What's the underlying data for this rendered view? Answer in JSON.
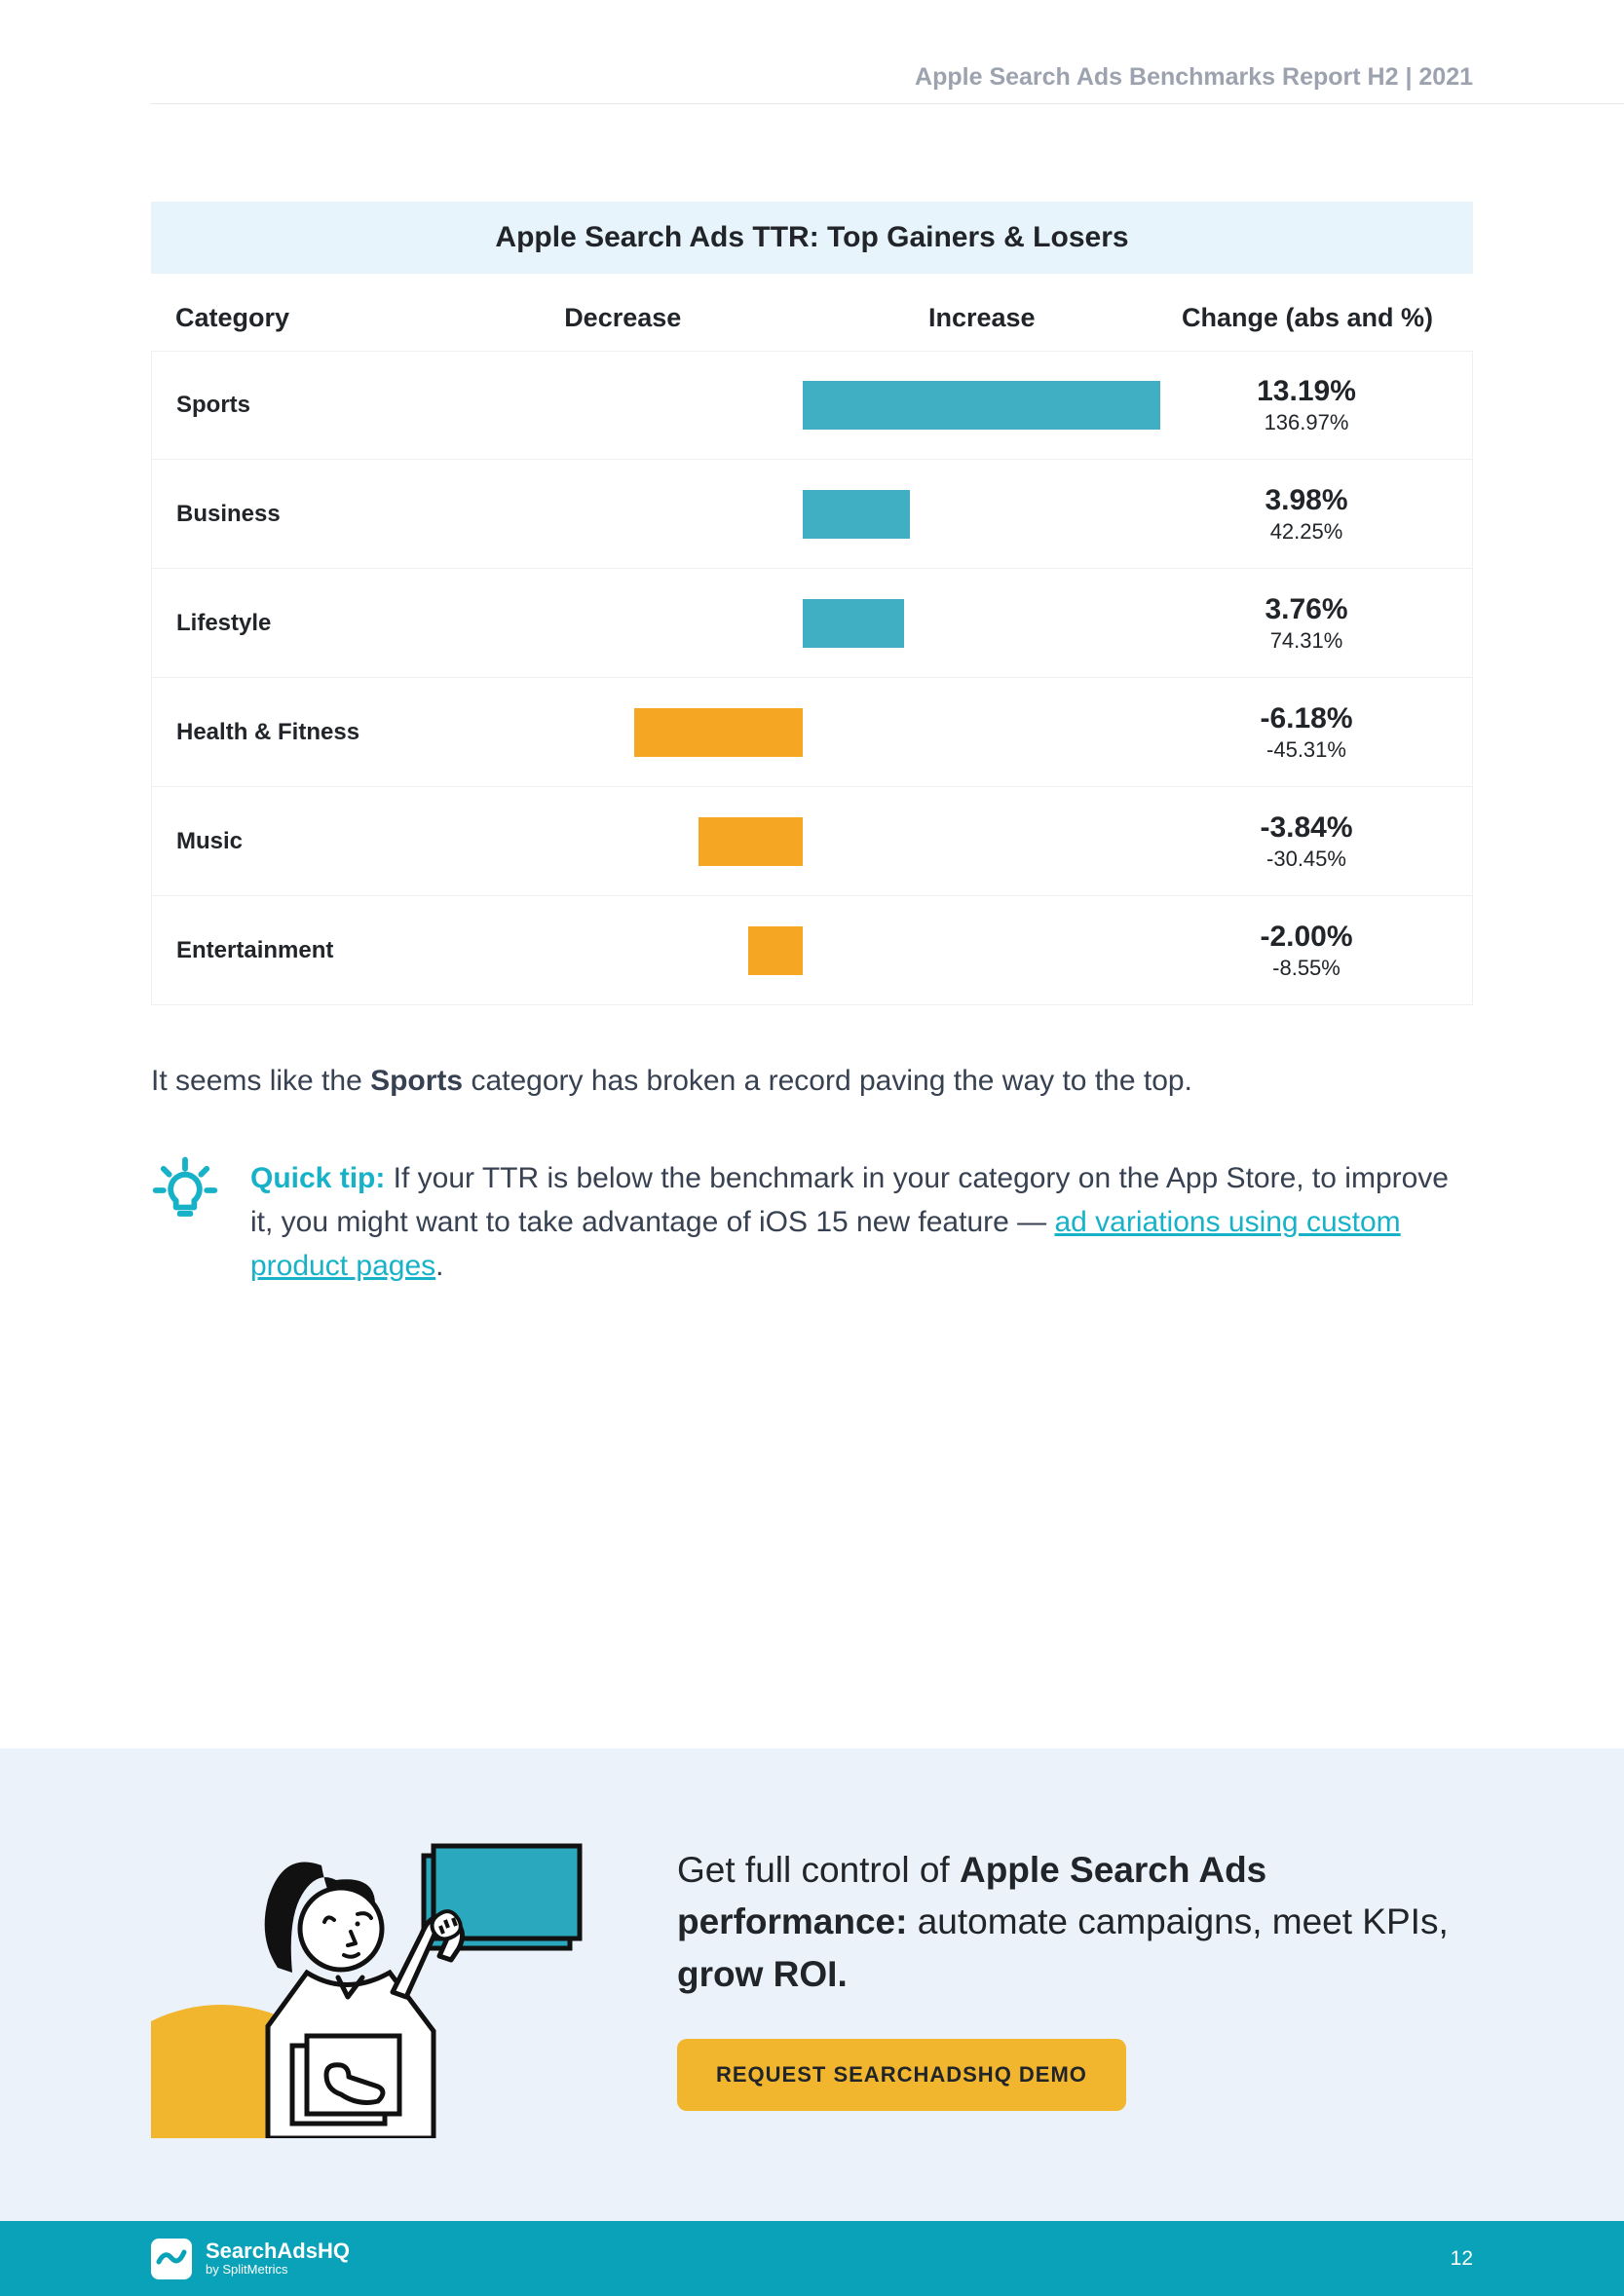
{
  "header": {
    "label": "Apple Search Ads Benchmarks Report H2 | 2021"
  },
  "chart": {
    "title": "Apple Search Ads TTR: Top Gainers & Losers",
    "columns": {
      "category": "Category",
      "decrease": "Decrease",
      "increase": "Increase",
      "change": "Change (abs and %)"
    },
    "bar_colors": {
      "increase": "#40aec3",
      "decrease": "#f5a623"
    },
    "max_abs_value": 13.19,
    "rows": [
      {
        "category": "Sports",
        "abs": "13.19%",
        "pct": "136.97%",
        "value": 13.19
      },
      {
        "category": "Business",
        "abs": "3.98%",
        "pct": "42.25%",
        "value": 3.98
      },
      {
        "category": "Lifestyle",
        "abs": "3.76%",
        "pct": "74.31%",
        "value": 3.76
      },
      {
        "category": "Health & Fitness",
        "abs": "-6.18%",
        "pct": "-45.31%",
        "value": -6.18
      },
      {
        "category": "Music",
        "abs": "-3.84%",
        "pct": "-30.45%",
        "value": -3.84
      },
      {
        "category": "Entertainment",
        "abs": "-2.00%",
        "pct": "-8.55%",
        "value": -2.0
      }
    ]
  },
  "body": {
    "para_pre": "It seems like the ",
    "para_bold": "Sports",
    "para_post": " category has broken a record paving the way to the top."
  },
  "tip": {
    "label": "Quick tip:",
    "text_pre": " If your TTR is below the benchmark in your category on the App Store, to improve it, you might want to take advantage of iOS 15 new feature — ",
    "link": "ad variations using custom product pages",
    "text_post": "."
  },
  "cta": {
    "head_pre": "Get full control of ",
    "head_b1": "Apple Search Ads performance:",
    "head_mid": " automate campaigns, meet KPIs, ",
    "head_b2": "grow ROI.",
    "button": "REQUEST SEARCHADSHQ DEMO"
  },
  "footer": {
    "logo_main": "SearchAdsHQ",
    "logo_sub": "by SplitMetrics",
    "page": "12"
  },
  "colors": {
    "tip_accent": "#17b2c8",
    "footer_bg": "#0aa2b8",
    "cta_btn": "#f2b62e",
    "cta_panel_bg": "#ecf2f9",
    "chart_title_bg": "#e8f4fb"
  }
}
